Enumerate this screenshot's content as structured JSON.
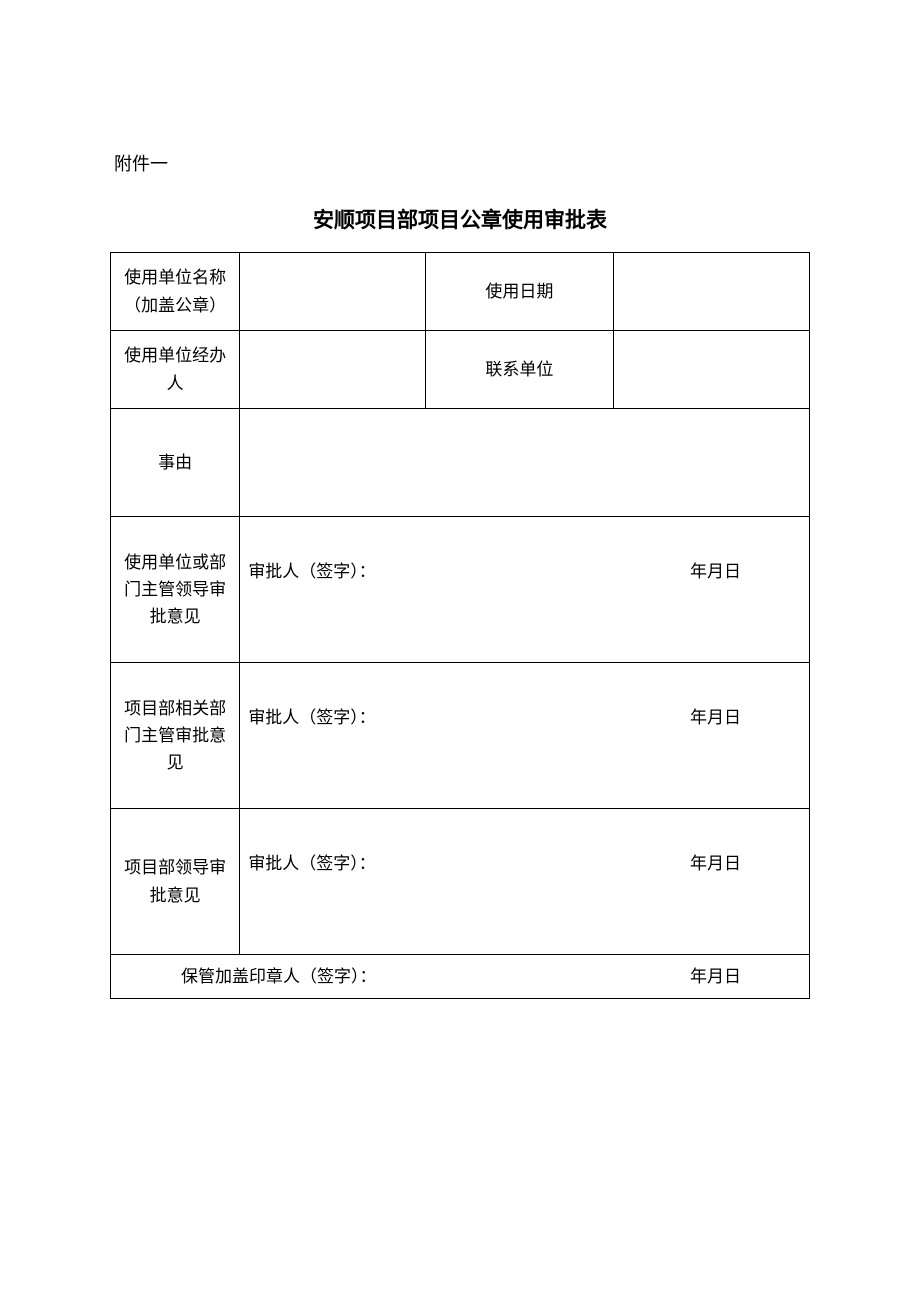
{
  "attachment_label": "附件一",
  "title": "安顺项目部项目公章使用审批表",
  "row1": {
    "label1": "使用单位名称（加盖公章）",
    "label1_line1": "使用单位名称",
    "label1_line2": "（加盖公章）",
    "label2": "使用日期"
  },
  "row2": {
    "label1_line1": "使用单位经办",
    "label1_line2": "人",
    "label2": "联系单位"
  },
  "row3": {
    "label": "事由"
  },
  "approval1": {
    "label_line1": "使用单位或部",
    "label_line2": "门主管领导审",
    "label_line3": "批意见",
    "sig_label": "审批人（签字）：",
    "date_label": "年月日"
  },
  "approval2": {
    "label_line1": "项目部相关部",
    "label_line2": "门主管审批意",
    "label_line3": "见",
    "sig_label": "审批人（签字）：",
    "date_label": "年月日"
  },
  "approval3": {
    "label_line1": "项目部领导审",
    "label_line2": "批意见",
    "sig_label": "审批人（签字）：",
    "date_label": "年月日"
  },
  "footer": {
    "sig_label": "保管加盖印章人（签字）：",
    "date_label": "年月日"
  },
  "colors": {
    "background": "#ffffff",
    "text": "#000000",
    "border": "#000000"
  },
  "typography": {
    "body_fontsize": 17,
    "title_fontsize": 21,
    "attachment_fontsize": 18,
    "font_family": "SimSun"
  }
}
